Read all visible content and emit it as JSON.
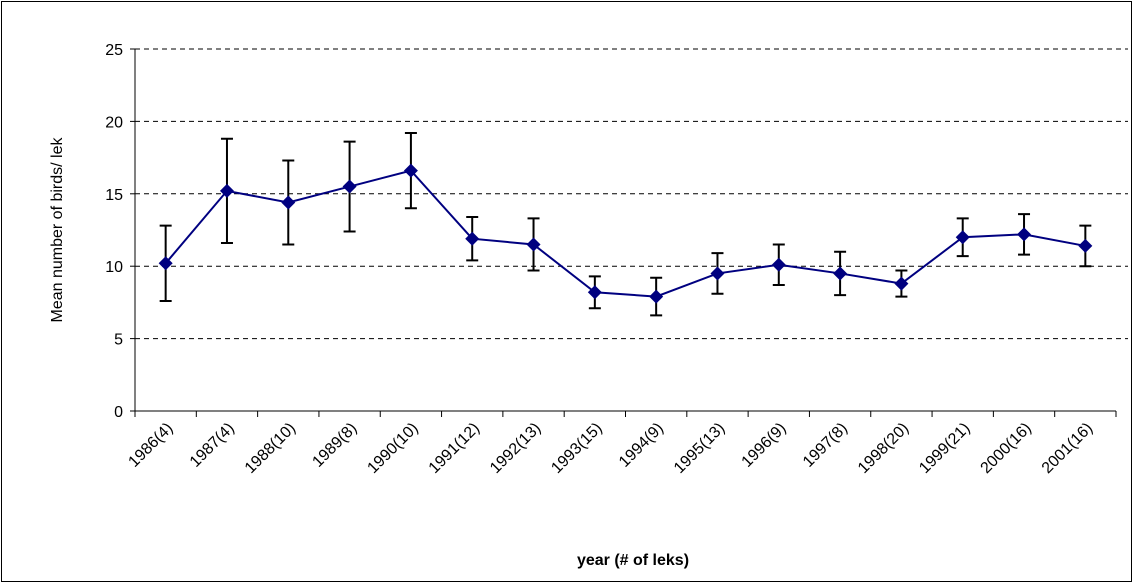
{
  "chart_data": {
    "type": "line",
    "x_label": "year (# of leks)",
    "y_label": "Mean number of birds/ lek",
    "categories": [
      "1986(4)",
      "1987(4)",
      "1988(10)",
      "1989(8)",
      "1990(10)",
      "1991(12)",
      "1992(13)",
      "1993(15)",
      "1994(9)",
      "1995(13)",
      "1996(9)",
      "1997(8)",
      "1998(20)",
      "1999(21)",
      "2000(16)",
      "2001(16)"
    ],
    "series": [
      {
        "color": "#000080",
        "error_color": "#000000",
        "values": [
          10.2,
          15.2,
          14.4,
          15.5,
          16.6,
          11.9,
          11.5,
          8.2,
          7.9,
          9.5,
          10.1,
          9.5,
          8.8,
          12.0,
          12.2,
          11.4
        ],
        "errors": [
          2.6,
          3.6,
          2.9,
          3.1,
          2.6,
          1.5,
          1.8,
          1.1,
          1.3,
          1.4,
          1.4,
          1.5,
          0.9,
          1.3,
          1.4,
          1.4
        ]
      }
    ],
    "ylim": [
      0,
      25
    ],
    "yticks": [
      0,
      5,
      10,
      15,
      20,
      25
    ],
    "grid": true
  }
}
